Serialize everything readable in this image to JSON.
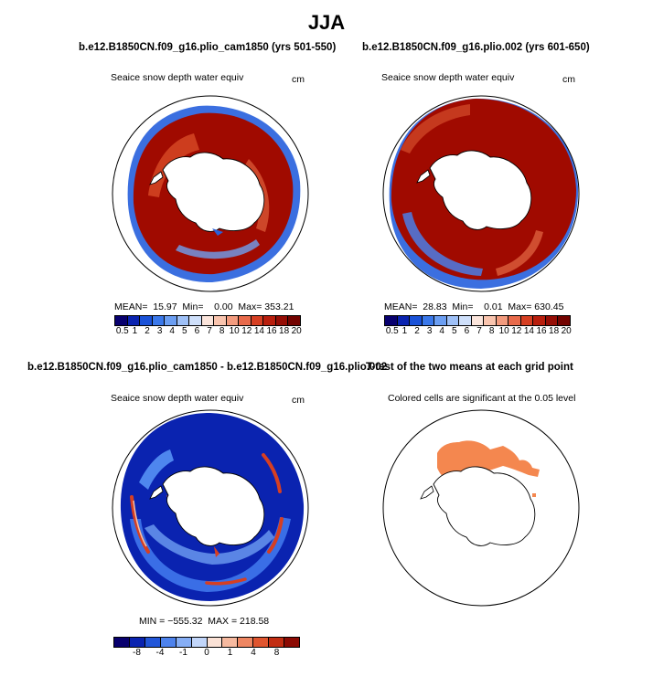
{
  "figure": {
    "title": "JJA"
  },
  "panels": {
    "p1": {
      "title": "b.e12.B1850CN.f09_g16.plio_cam1850 (yrs 501-550)",
      "variable": "Seaice snow depth water equiv",
      "units": "cm",
      "stats": "MEAN=  15.97  Min=    0.00  Max= 353.21"
    },
    "p2": {
      "title": "b.e12.B1850CN.f09_g16.plio.002 (yrs 601-650)",
      "variable": "Seaice snow depth water equiv",
      "units": "cm",
      "stats": "MEAN=  28.83  Min=    0.01  Max= 630.45"
    },
    "p3": {
      "title": "b.e12.B1850CN.f09_g16.plio_cam1850 - b.e12.B1850CN.f09_g16.plio.002",
      "variable": "Seaice snow depth water equiv",
      "units": "cm",
      "stats": "MIN = −555.32  MAX = 218.58"
    },
    "p4": {
      "title": "T-test of the two means at each grid point",
      "subtitle": "Colored cells are significant at the 0.05 level"
    }
  },
  "colorbars": {
    "abs": {
      "colors": [
        "#08006e",
        "#0a23b0",
        "#1a52d8",
        "#3a78ea",
        "#6b9ef2",
        "#9ec0f7",
        "#cfe0fb",
        "#fbe5dc",
        "#f9c4ae",
        "#f39b7e",
        "#e86a4b",
        "#d63f22",
        "#b81e0d",
        "#950d05",
        "#730300"
      ],
      "labels": [
        "0.5",
        "1",
        "2",
        "3",
        "4",
        "5",
        "6",
        "7",
        "8",
        "10",
        "12",
        "14",
        "16",
        "18",
        "20"
      ]
    },
    "diff": {
      "colors": [
        "#08006e",
        "#0a23b0",
        "#2256d8",
        "#4d82ec",
        "#86aef5",
        "#c2d6fa",
        "#fbe2d6",
        "#f6b99f",
        "#ee8662",
        "#e0552f",
        "#c22d12",
        "#8c0a03"
      ],
      "labels": [
        "-8",
        "-4",
        "-1",
        "0",
        "1",
        "4",
        "8"
      ]
    }
  },
  "colors": {
    "ice_red": "#a00a00",
    "significant": "#f4874f"
  }
}
